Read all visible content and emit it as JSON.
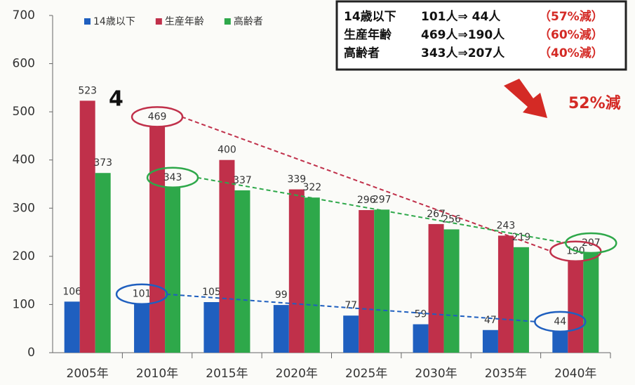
{
  "chart_data": {
    "type": "bar",
    "categories": [
      "2005年",
      "2010年",
      "2015年",
      "2020年",
      "2025年",
      "2030年",
      "2035年",
      "2040年"
    ],
    "series": [
      {
        "name": "14歳以下",
        "color": "#1f5fbf",
        "values": [
          106,
          101,
          105,
          99,
          77,
          59,
          47,
          44
        ]
      },
      {
        "name": "生産年齢",
        "color": "#c0304a",
        "values": [
          523,
          469,
          400,
          339,
          296,
          267,
          243,
          190
        ]
      },
      {
        "name": "高齢者",
        "color": "#2ea84a",
        "values": [
          373,
          343,
          337,
          322,
          297,
          256,
          219,
          207
        ]
      }
    ],
    "ylim": [
      0,
      700
    ],
    "yticks": [
      0,
      100,
      200,
      300,
      400,
      500,
      600,
      700
    ],
    "summary": [
      {
        "label": "14歳以下",
        "change": "101人⇒ 44人",
        "pct": "（57%減）"
      },
      {
        "label": "生産年齢",
        "change": "469人⇒190人",
        "pct": "（60%減）"
      },
      {
        "label": "高齢者",
        "change": "343人⇒207人",
        "pct": "（40%減）"
      }
    ],
    "total_change": "52%減",
    "marker": "4"
  }
}
